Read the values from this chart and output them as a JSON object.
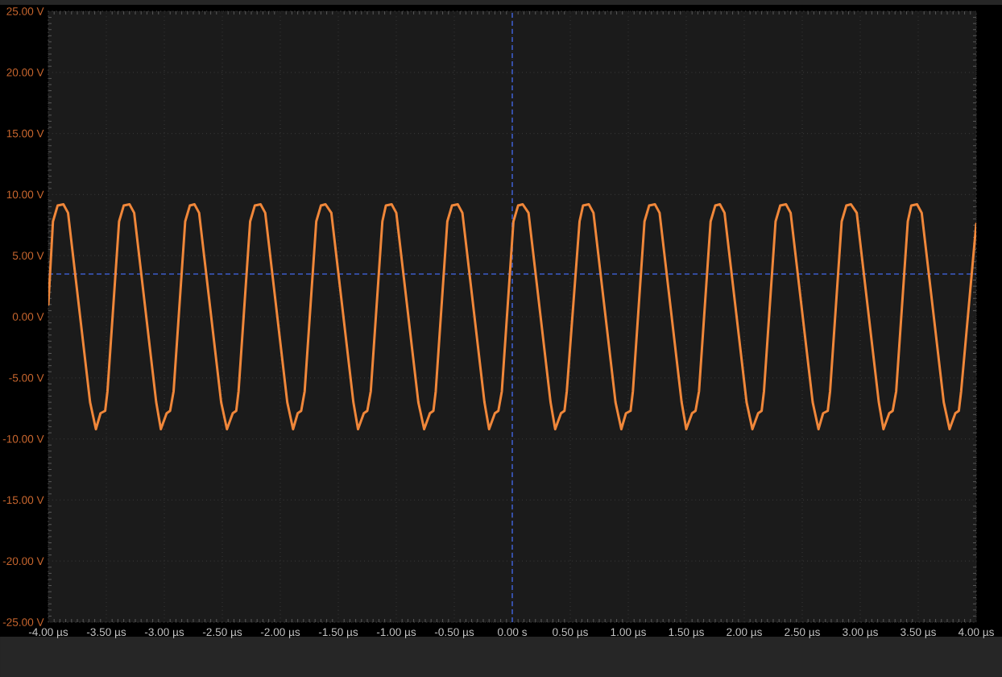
{
  "chart_data": {
    "type": "line",
    "x": [
      -4.0,
      -3.96,
      -3.92,
      -3.87,
      -3.83,
      -3.64,
      -3.59,
      -3.55,
      -3.51,
      -3.49,
      -3.39,
      -3.35,
      -3.3,
      -3.26,
      -3.07,
      -3.03,
      -2.98,
      -2.95,
      -2.92,
      -2.82,
      -2.78,
      -2.74,
      -2.7,
      -2.51,
      -2.46,
      -2.41,
      -2.38,
      -2.36,
      -2.26,
      -2.22,
      -2.17,
      -2.13,
      -1.94,
      -1.89,
      -1.85,
      -1.82,
      -1.79,
      -1.69,
      -1.65,
      -1.61,
      -1.56,
      -1.37,
      -1.33,
      -1.28,
      -1.25,
      -1.22,
      -1.12,
      -1.09,
      -1.04,
      -1.0,
      -0.81,
      -0.76,
      -0.71,
      -0.68,
      -0.66,
      -0.56,
      -0.52,
      -0.47,
      -0.43,
      -0.24,
      -0.2,
      -0.15,
      -0.12,
      -0.09,
      0.01,
      0.05,
      0.09,
      0.14,
      0.33,
      0.37,
      0.42,
      0.45,
      0.47,
      0.58,
      0.61,
      0.66,
      0.7,
      0.89,
      0.94,
      0.98,
      1.02,
      1.04,
      1.14,
      1.18,
      1.23,
      1.27,
      1.46,
      1.5,
      1.55,
      1.58,
      1.61,
      1.71,
      1.75,
      1.79,
      1.83,
      2.02,
      2.07,
      2.12,
      2.15,
      2.17,
      2.27,
      2.31,
      2.36,
      2.4,
      2.59,
      2.64,
      2.68,
      2.72,
      2.74,
      2.84,
      2.88,
      2.92,
      2.97,
      3.16,
      3.2,
      3.25,
      3.28,
      3.31,
      3.41,
      3.44,
      3.49,
      3.53,
      3.72,
      3.77,
      3.82,
      3.85,
      3.87,
      4.0
    ],
    "series": [
      {
        "color": "#f0873a",
        "values": [
          1.0,
          7.8,
          9.1,
          9.2,
          8.5,
          -7.0,
          -9.2,
          -7.9,
          -7.7,
          -6.1,
          7.8,
          9.1,
          9.2,
          8.5,
          -7.0,
          -9.2,
          -7.9,
          -7.7,
          -6.1,
          7.8,
          9.1,
          9.2,
          8.5,
          -7.0,
          -9.2,
          -7.9,
          -7.7,
          -6.1,
          7.8,
          9.1,
          9.2,
          8.5,
          -7.0,
          -9.2,
          -7.9,
          -7.7,
          -6.1,
          7.8,
          9.1,
          9.2,
          8.5,
          -7.0,
          -9.2,
          -7.9,
          -7.7,
          -6.1,
          7.8,
          9.1,
          9.2,
          8.5,
          -7.0,
          -9.2,
          -7.9,
          -7.7,
          -6.1,
          7.8,
          9.1,
          9.2,
          8.5,
          -7.0,
          -9.2,
          -7.9,
          -7.7,
          -6.1,
          7.8,
          9.1,
          9.2,
          8.5,
          -7.0,
          -9.2,
          -7.9,
          -7.7,
          -6.1,
          7.8,
          9.1,
          9.2,
          8.5,
          -7.0,
          -9.2,
          -7.9,
          -7.7,
          -6.1,
          7.8,
          9.1,
          9.2,
          8.5,
          -7.0,
          -9.2,
          -7.9,
          -7.7,
          -6.1,
          7.8,
          9.1,
          9.2,
          8.5,
          -7.0,
          -9.2,
          -7.9,
          -7.7,
          -6.1,
          7.8,
          9.1,
          9.2,
          8.5,
          -7.0,
          -9.2,
          -7.9,
          -7.7,
          -6.1,
          7.8,
          9.1,
          9.2,
          8.5,
          -7.0,
          -9.2,
          -7.9,
          -7.7,
          -6.1,
          7.8,
          9.1,
          9.2,
          8.5,
          -7.0,
          -9.2,
          -7.9,
          -7.7,
          -6.1,
          7.6
        ]
      }
    ],
    "xlim": [
      -4,
      4
    ],
    "ylim": [
      -25,
      25
    ],
    "xticks": [
      {
        "value": -4,
        "label": "-4.00 µs"
      },
      {
        "value": -3.5,
        "label": "-3.50 µs"
      },
      {
        "value": -3,
        "label": "-3.00 µs"
      },
      {
        "value": -2.5,
        "label": "-2.50 µs"
      },
      {
        "value": -2,
        "label": "-2.00 µs"
      },
      {
        "value": -1.5,
        "label": "-1.50 µs"
      },
      {
        "value": -1,
        "label": "-1.00 µs"
      },
      {
        "value": -0.5,
        "label": "-0.50 µs"
      },
      {
        "value": 0,
        "label": "0.00 s"
      },
      {
        "value": 0.5,
        "label": "0.50 µs"
      },
      {
        "value": 1,
        "label": "1.00 µs"
      },
      {
        "value": 1.5,
        "label": "1.50 µs"
      },
      {
        "value": 2,
        "label": "2.00 µs"
      },
      {
        "value": 2.5,
        "label": "2.50 µs"
      },
      {
        "value": 3,
        "label": "3.00 µs"
      },
      {
        "value": 3.5,
        "label": "3.50 µs"
      },
      {
        "value": 4,
        "label": "4.00 µs"
      }
    ],
    "yticks": [
      {
        "value": 25,
        "label": "25.00 V"
      },
      {
        "value": 20,
        "label": "20.00 V"
      },
      {
        "value": 15,
        "label": "15.00 V"
      },
      {
        "value": 10,
        "label": "10.00 V"
      },
      {
        "value": 5,
        "label": "5.00 V"
      },
      {
        "value": 0,
        "label": "0.00 V"
      },
      {
        "value": -5,
        "label": "-5.00 V"
      },
      {
        "value": -10,
        "label": "-10.00 V"
      },
      {
        "value": -15,
        "label": "-15.00 V"
      },
      {
        "value": -20,
        "label": "-20.00 V"
      },
      {
        "value": -25,
        "label": "-25.00 V"
      }
    ],
    "grid": true,
    "marker": "none",
    "line_style": "solid",
    "ref_lines": [
      {
        "axis": "y",
        "value": 3.5,
        "color": "#3d5cc8",
        "line_style": "dashed"
      },
      {
        "axis": "x",
        "value": 0,
        "color": "#3d5cc8",
        "line_style": "dashed"
      }
    ]
  }
}
